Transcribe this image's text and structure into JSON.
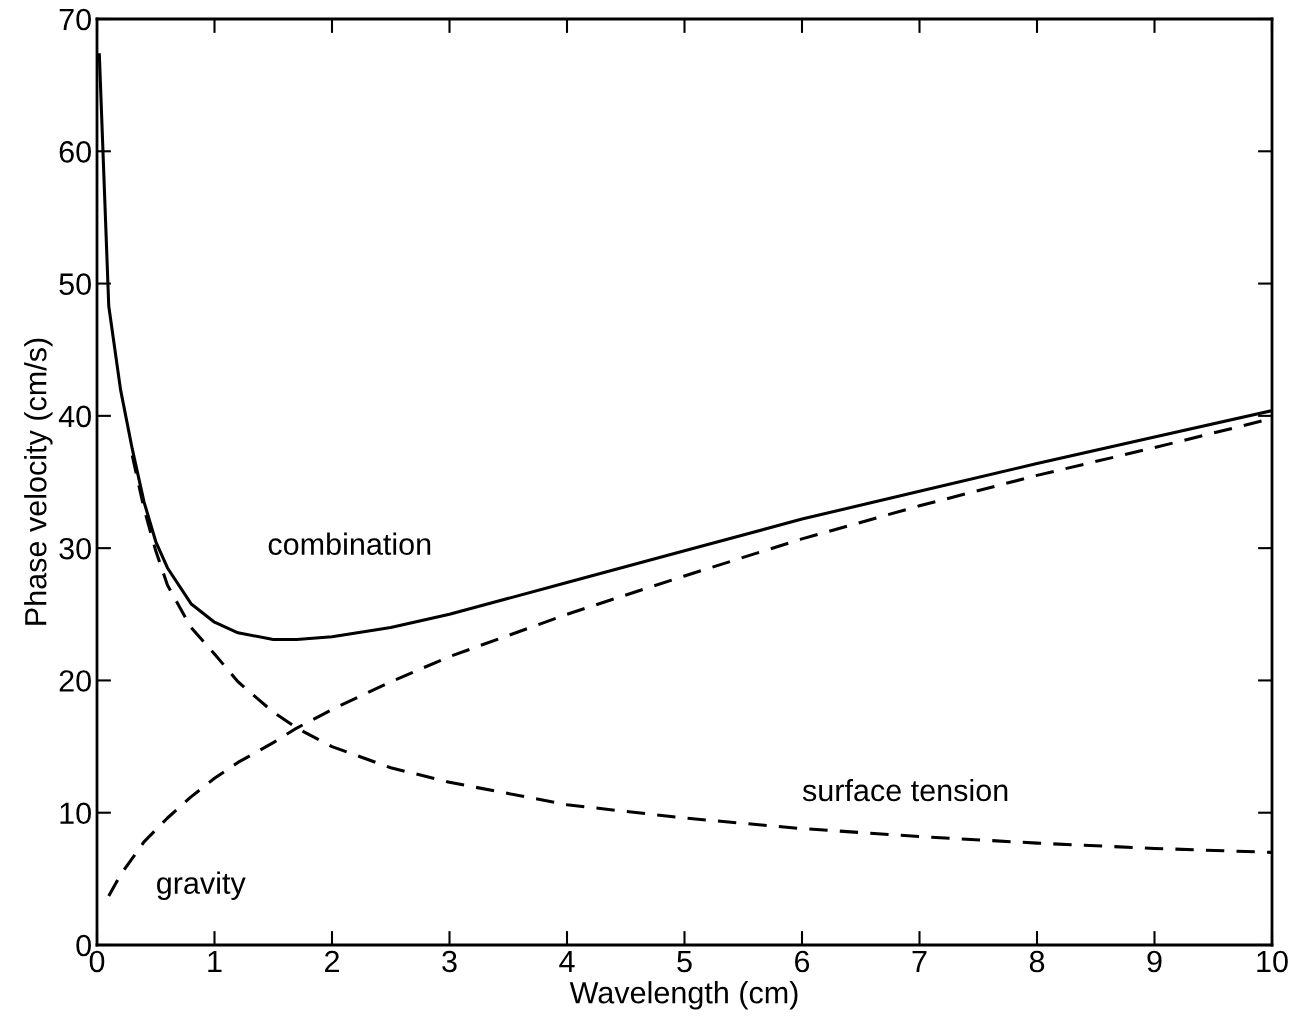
{
  "chart_data": {
    "type": "line",
    "xlabel": "Wavelength (cm)",
    "ylabel": "Phase velocity (cm/s)",
    "xlim": [
      0,
      10
    ],
    "ylim": [
      0,
      70
    ],
    "xticks": [
      0,
      1,
      2,
      3,
      4,
      5,
      6,
      7,
      8,
      9,
      10
    ],
    "yticks": [
      0,
      10,
      20,
      30,
      40,
      50,
      60,
      70
    ],
    "grid": false,
    "marker": "none",
    "series": [
      {
        "color": "#000000",
        "line_style": "solid",
        "x": [
          0.02,
          0.1,
          0.2,
          0.3,
          0.4,
          0.5,
          0.6,
          0.8,
          1,
          1.2,
          1.5,
          1.7,
          2,
          2.5,
          3,
          4,
          5,
          6,
          7,
          8,
          9,
          10
        ],
        "values": [
          67.3,
          48.3,
          42.0,
          37.5,
          33.5,
          30.5,
          28.5,
          25.8,
          24.4,
          23.6,
          23.1,
          23.1,
          23.3,
          24.0,
          25.0,
          27.4,
          29.8,
          32.2,
          34.3,
          36.4,
          38.4,
          40.4
        ]
      },
      {
        "color": "#000000",
        "line_style": "dashed",
        "x": [
          0.3,
          0.4,
          0.5,
          0.6,
          0.8,
          1,
          1.2,
          1.5,
          1.7,
          2,
          2.5,
          3,
          4,
          5,
          6,
          7,
          8,
          9,
          10
        ],
        "values": [
          37,
          33,
          29.8,
          27.2,
          24.0,
          22.0,
          19.9,
          17.6,
          16.4,
          15.0,
          13.4,
          12.3,
          10.6,
          9.6,
          8.8,
          8.2,
          7.7,
          7.3,
          7.0
        ]
      },
      {
        "color": "#000000",
        "line_style": "dashed",
        "x": [
          0.1,
          0.2,
          0.4,
          0.6,
          0.8,
          1,
          1.2,
          1.5,
          1.7,
          2,
          2.5,
          3,
          4,
          5,
          6,
          7,
          8,
          9,
          10
        ],
        "values": [
          3.7,
          5.3,
          7.8,
          9.6,
          11.2,
          12.6,
          13.8,
          15.3,
          16.4,
          17.8,
          19.9,
          21.8,
          25.0,
          27.9,
          30.7,
          33.2,
          35.5,
          37.6,
          39.8
        ]
      }
    ],
    "annotations": [
      "combination",
      "gravity",
      "surface tension"
    ]
  }
}
